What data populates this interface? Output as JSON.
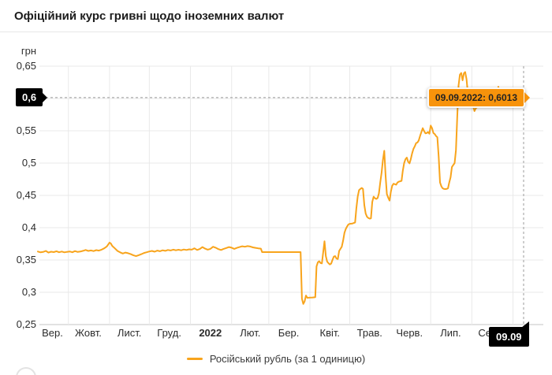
{
  "header": {
    "title": "Офіційний курс гривні щодо іноземних валют"
  },
  "chart_data": {
    "type": "line",
    "title": "Офіційний курс гривні щодо іноземних валют",
    "ylabel": "грн",
    "legend": {
      "label": "Російський рубль (за 1 одиницю)",
      "position": "bottom-center"
    },
    "grid": true,
    "colors": {
      "line": "#F8A41C",
      "tooltip_bg": "#F7930B",
      "grid": "#E9E9E9",
      "axis_line": "#C6C6C6",
      "crosshair": "#9B9B9B",
      "axis_flag_bg": "#000000",
      "axis_flag_text": "#FFFFFF"
    },
    "y_axis": {
      "min": 0.25,
      "max": 0.65,
      "ticks": [
        {
          "value": 0.65,
          "label": "0,65"
        },
        {
          "value": 0.6,
          "label": "0,6",
          "hidden": true
        },
        {
          "value": 0.55,
          "label": "0,55"
        },
        {
          "value": 0.5,
          "label": "0,5"
        },
        {
          "value": 0.45,
          "label": "0,45"
        },
        {
          "value": 0.4,
          "label": "0,4"
        },
        {
          "value": 0.35,
          "label": "0,35"
        },
        {
          "value": 0.3,
          "label": "0,3"
        },
        {
          "value": 0.25,
          "label": "0,25"
        }
      ]
    },
    "x_axis": {
      "start_date": "2021-09-08",
      "end_date": "2022-09-09",
      "month_gridline_dates": [
        "2021-10-01",
        "2021-11-01",
        "2021-12-01",
        "2022-01-01",
        "2022-02-01",
        "2022-03-01",
        "2022-04-01",
        "2022-05-01",
        "2022-06-01",
        "2022-07-01",
        "2022-08-01",
        "2022-09-01"
      ],
      "labels": [
        {
          "text": "Вер.",
          "center": "2021-09-19"
        },
        {
          "text": "Жовт.",
          "center": "2021-10-16"
        },
        {
          "text": "Лист.",
          "center": "2021-11-16"
        },
        {
          "text": "Груд.",
          "center": "2021-12-16"
        },
        {
          "text": "2022",
          "center": "2022-01-16",
          "bold": true
        },
        {
          "text": "Лют.",
          "center": "2022-02-15"
        },
        {
          "text": "Бер.",
          "center": "2022-03-16"
        },
        {
          "text": "Квіт.",
          "center": "2022-04-16"
        },
        {
          "text": "Трав.",
          "center": "2022-05-16"
        },
        {
          "text": "Черв.",
          "center": "2022-06-15"
        },
        {
          "text": "Лип.",
          "center": "2022-07-16"
        },
        {
          "text": "Серп.",
          "center": "2022-08-16"
        }
      ]
    },
    "crosshair": {
      "date": "2022-09-09",
      "value": 0.6013,
      "value_axis_label": "0,6",
      "date_axis_label": "09.09",
      "tooltip_text": "09.09.2022: 0,6013"
    },
    "series": [
      {
        "name": "Російський рубль (за 1 одиницю)",
        "color": "#F8A41C",
        "points": [
          [
            "2021-09-08",
            0.363
          ],
          [
            "2021-09-10",
            0.3618
          ],
          [
            "2021-09-12",
            0.3625
          ],
          [
            "2021-09-14",
            0.364
          ],
          [
            "2021-09-16",
            0.3615
          ],
          [
            "2021-09-18",
            0.3628
          ],
          [
            "2021-09-20",
            0.3622
          ],
          [
            "2021-09-22",
            0.3635
          ],
          [
            "2021-09-24",
            0.362
          ],
          [
            "2021-09-26",
            0.363
          ],
          [
            "2021-09-28",
            0.3618
          ],
          [
            "2021-09-30",
            0.3626
          ],
          [
            "2021-10-02",
            0.3632
          ],
          [
            "2021-10-04",
            0.362
          ],
          [
            "2021-10-06",
            0.3638
          ],
          [
            "2021-10-08",
            0.3625
          ],
          [
            "2021-10-10",
            0.363
          ],
          [
            "2021-10-12",
            0.3642
          ],
          [
            "2021-10-14",
            0.3655
          ],
          [
            "2021-10-16",
            0.364
          ],
          [
            "2021-10-18",
            0.3648
          ],
          [
            "2021-10-20",
            0.3638
          ],
          [
            "2021-10-22",
            0.3652
          ],
          [
            "2021-10-24",
            0.3645
          ],
          [
            "2021-10-26",
            0.366
          ],
          [
            "2021-10-28",
            0.368
          ],
          [
            "2021-10-30",
            0.371
          ],
          [
            "2021-11-01",
            0.377
          ],
          [
            "2021-11-02",
            0.3755
          ],
          [
            "2021-11-03",
            0.3718
          ],
          [
            "2021-11-05",
            0.368
          ],
          [
            "2021-11-07",
            0.364
          ],
          [
            "2021-11-09",
            0.3618
          ],
          [
            "2021-11-11",
            0.36
          ],
          [
            "2021-11-13",
            0.3615
          ],
          [
            "2021-11-15",
            0.3605
          ],
          [
            "2021-11-17",
            0.359
          ],
          [
            "2021-11-19",
            0.3572
          ],
          [
            "2021-11-21",
            0.356
          ],
          [
            "2021-11-23",
            0.3575
          ],
          [
            "2021-11-25",
            0.359
          ],
          [
            "2021-11-27",
            0.3608
          ],
          [
            "2021-11-29",
            0.362
          ],
          [
            "2021-12-01",
            0.3632
          ],
          [
            "2021-12-03",
            0.364
          ],
          [
            "2021-12-05",
            0.3628
          ],
          [
            "2021-12-07",
            0.3645
          ],
          [
            "2021-12-09",
            0.3635
          ],
          [
            "2021-12-11",
            0.365
          ],
          [
            "2021-12-13",
            0.3642
          ],
          [
            "2021-12-15",
            0.3655
          ],
          [
            "2021-12-17",
            0.3648
          ],
          [
            "2021-12-19",
            0.366
          ],
          [
            "2021-12-21",
            0.365
          ],
          [
            "2021-12-23",
            0.3658
          ],
          [
            "2021-12-25",
            0.365
          ],
          [
            "2021-12-27",
            0.3662
          ],
          [
            "2021-12-29",
            0.3655
          ],
          [
            "2021-12-31",
            0.3665
          ],
          [
            "2022-01-02",
            0.366
          ],
          [
            "2022-01-04",
            0.368
          ],
          [
            "2022-01-06",
            0.3655
          ],
          [
            "2022-01-08",
            0.367
          ],
          [
            "2022-01-10",
            0.37
          ],
          [
            "2022-01-12",
            0.3675
          ],
          [
            "2022-01-14",
            0.366
          ],
          [
            "2022-01-16",
            0.3672
          ],
          [
            "2022-01-18",
            0.3705
          ],
          [
            "2022-01-20",
            0.369
          ],
          [
            "2022-01-22",
            0.3668
          ],
          [
            "2022-01-24",
            0.3655
          ],
          [
            "2022-01-26",
            0.3672
          ],
          [
            "2022-01-28",
            0.3685
          ],
          [
            "2022-01-30",
            0.37
          ],
          [
            "2022-02-01",
            0.369
          ],
          [
            "2022-02-03",
            0.3672
          ],
          [
            "2022-02-05",
            0.3688
          ],
          [
            "2022-02-07",
            0.37
          ],
          [
            "2022-02-09",
            0.3712
          ],
          [
            "2022-02-11",
            0.3705
          ],
          [
            "2022-02-13",
            0.3715
          ],
          [
            "2022-02-15",
            0.3708
          ],
          [
            "2022-02-17",
            0.3695
          ],
          [
            "2022-02-19",
            0.3688
          ],
          [
            "2022-02-21",
            0.368
          ],
          [
            "2022-02-23",
            0.3675
          ],
          [
            "2022-02-24",
            0.3622
          ],
          [
            "2022-03-05",
            0.3622
          ],
          [
            "2022-03-15",
            0.3622
          ],
          [
            "2022-03-25",
            0.3622
          ],
          [
            "2022-03-26",
            0.29
          ],
          [
            "2022-03-27",
            0.282
          ],
          [
            "2022-03-28",
            0.286
          ],
          [
            "2022-03-29",
            0.295
          ],
          [
            "2022-03-30",
            0.2915
          ],
          [
            "2022-04-01",
            0.2918
          ],
          [
            "2022-04-03",
            0.292
          ],
          [
            "2022-04-05",
            0.2925
          ],
          [
            "2022-04-06",
            0.34
          ],
          [
            "2022-04-07",
            0.3465
          ],
          [
            "2022-04-08",
            0.348
          ],
          [
            "2022-04-09",
            0.3452
          ],
          [
            "2022-04-10",
            0.3448
          ],
          [
            "2022-04-12",
            0.379
          ],
          [
            "2022-04-13",
            0.356
          ],
          [
            "2022-04-14",
            0.3475
          ],
          [
            "2022-04-15",
            0.345
          ],
          [
            "2022-04-16",
            0.343
          ],
          [
            "2022-04-17",
            0.3445
          ],
          [
            "2022-04-18",
            0.35
          ],
          [
            "2022-04-19",
            0.3552
          ],
          [
            "2022-04-20",
            0.356
          ],
          [
            "2022-04-21",
            0.3522
          ],
          [
            "2022-04-22",
            0.3515
          ],
          [
            "2022-04-23",
            0.364
          ],
          [
            "2022-04-25",
            0.3705
          ],
          [
            "2022-04-26",
            0.38
          ],
          [
            "2022-04-27",
            0.392
          ],
          [
            "2022-04-28",
            0.398
          ],
          [
            "2022-04-29",
            0.402
          ],
          [
            "2022-04-30",
            0.405
          ],
          [
            "2022-05-01",
            0.406
          ],
          [
            "2022-05-03",
            0.4065
          ],
          [
            "2022-05-05",
            0.408
          ],
          [
            "2022-05-06",
            0.43
          ],
          [
            "2022-05-07",
            0.448
          ],
          [
            "2022-05-08",
            0.458
          ],
          [
            "2022-05-09",
            0.46
          ],
          [
            "2022-05-10",
            0.4615
          ],
          [
            "2022-05-11",
            0.46
          ],
          [
            "2022-05-12",
            0.435
          ],
          [
            "2022-05-13",
            0.422
          ],
          [
            "2022-05-14",
            0.417
          ],
          [
            "2022-05-15",
            0.415
          ],
          [
            "2022-05-16",
            0.414
          ],
          [
            "2022-05-17",
            0.4145
          ],
          [
            "2022-05-18",
            0.44
          ],
          [
            "2022-05-19",
            0.448
          ],
          [
            "2022-05-20",
            0.4455
          ],
          [
            "2022-05-21",
            0.4445
          ],
          [
            "2022-05-22",
            0.446
          ],
          [
            "2022-05-23",
            0.453
          ],
          [
            "2022-05-24",
            0.47
          ],
          [
            "2022-05-25",
            0.485
          ],
          [
            "2022-05-26",
            0.505
          ],
          [
            "2022-05-27",
            0.519
          ],
          [
            "2022-05-28",
            0.48
          ],
          [
            "2022-05-29",
            0.452
          ],
          [
            "2022-05-30",
            0.4465
          ],
          [
            "2022-05-31",
            0.442
          ],
          [
            "2022-06-01",
            0.456
          ],
          [
            "2022-06-02",
            0.465
          ],
          [
            "2022-06-03",
            0.468
          ],
          [
            "2022-06-05",
            0.4665
          ],
          [
            "2022-06-06",
            0.47
          ],
          [
            "2022-06-07",
            0.4712
          ],
          [
            "2022-06-09",
            0.4725
          ],
          [
            "2022-06-10",
            0.488
          ],
          [
            "2022-06-11",
            0.5
          ],
          [
            "2022-06-12",
            0.506
          ],
          [
            "2022-06-13",
            0.5085
          ],
          [
            "2022-06-14",
            0.502
          ],
          [
            "2022-06-15",
            0.4995
          ],
          [
            "2022-06-16",
            0.506
          ],
          [
            "2022-06-17",
            0.515
          ],
          [
            "2022-06-18",
            0.522
          ],
          [
            "2022-06-19",
            0.526
          ],
          [
            "2022-06-20",
            0.531
          ],
          [
            "2022-06-21",
            0.532
          ],
          [
            "2022-06-22",
            0.535
          ],
          [
            "2022-06-23",
            0.542
          ],
          [
            "2022-06-24",
            0.548
          ],
          [
            "2022-06-25",
            0.554
          ],
          [
            "2022-06-26",
            0.5495
          ],
          [
            "2022-06-27",
            0.546
          ],
          [
            "2022-06-28",
            0.5465
          ],
          [
            "2022-06-29",
            0.548
          ],
          [
            "2022-06-30",
            0.5455
          ],
          [
            "2022-07-01",
            0.558
          ],
          [
            "2022-07-02",
            0.554
          ],
          [
            "2022-07-03",
            0.5465
          ],
          [
            "2022-07-04",
            0.545
          ],
          [
            "2022-07-05",
            0.542
          ],
          [
            "2022-07-06",
            0.54
          ],
          [
            "2022-07-07",
            0.51
          ],
          [
            "2022-07-08",
            0.47
          ],
          [
            "2022-07-09",
            0.464
          ],
          [
            "2022-07-10",
            0.461
          ],
          [
            "2022-07-11",
            0.46
          ],
          [
            "2022-07-12",
            0.4598
          ],
          [
            "2022-07-13",
            0.46
          ],
          [
            "2022-07-14",
            0.461
          ],
          [
            "2022-07-15",
            0.47
          ],
          [
            "2022-07-16",
            0.478
          ],
          [
            "2022-07-17",
            0.494
          ],
          [
            "2022-07-19",
            0.5
          ],
          [
            "2022-07-20",
            0.52
          ],
          [
            "2022-07-21",
            0.57
          ],
          [
            "2022-07-22",
            0.62
          ],
          [
            "2022-07-23",
            0.637
          ],
          [
            "2022-07-24",
            0.6395
          ],
          [
            "2022-07-25",
            0.628
          ],
          [
            "2022-07-26",
            0.639
          ],
          [
            "2022-07-27",
            0.641
          ],
          [
            "2022-07-28",
            0.63
          ],
          [
            "2022-07-29",
            0.608
          ],
          [
            "2022-07-30",
            0.601
          ],
          [
            "2022-07-31",
            0.595
          ],
          [
            "2022-08-02",
            0.588
          ],
          [
            "2022-08-03",
            0.5805
          ],
          [
            "2022-08-04",
            0.585
          ],
          [
            "2022-08-06",
            0.588
          ],
          [
            "2022-08-08",
            0.59
          ],
          [
            "2022-08-10",
            0.5885
          ],
          [
            "2022-08-12",
            0.587
          ],
          [
            "2022-08-14",
            0.589
          ],
          [
            "2022-08-16",
            0.592
          ],
          [
            "2022-08-18",
            0.598
          ],
          [
            "2022-08-19",
            0.604
          ],
          [
            "2022-08-20",
            0.612
          ],
          [
            "2022-08-21",
            0.618
          ],
          [
            "2022-08-22",
            0.609
          ],
          [
            "2022-08-23",
            0.602
          ],
          [
            "2022-08-25",
            0.595
          ],
          [
            "2022-08-27",
            0.592
          ],
          [
            "2022-08-29",
            0.5905
          ],
          [
            "2022-08-31",
            0.593
          ],
          [
            "2022-09-02",
            0.595
          ],
          [
            "2022-09-04",
            0.597
          ],
          [
            "2022-09-06",
            0.5985
          ],
          [
            "2022-09-08",
            0.6
          ],
          [
            "2022-09-09",
            0.6013
          ]
        ]
      }
    ]
  }
}
